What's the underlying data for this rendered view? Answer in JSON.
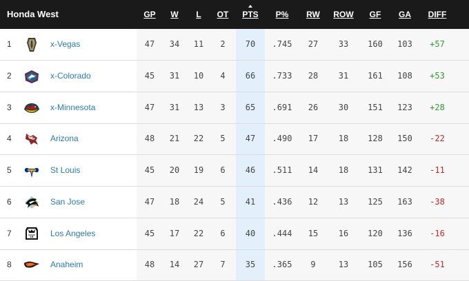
{
  "division": "Honda West",
  "columns": [
    {
      "key": "gp",
      "label": "GP"
    },
    {
      "key": "w",
      "label": "W"
    },
    {
      "key": "l",
      "label": "L"
    },
    {
      "key": "ot",
      "label": "OT"
    },
    {
      "key": "pts",
      "label": "PTS"
    },
    {
      "key": "pct",
      "label": "P%"
    },
    {
      "key": "rw",
      "label": "RW"
    },
    {
      "key": "row",
      "label": "ROW"
    },
    {
      "key": "gf",
      "label": "GF"
    },
    {
      "key": "ga",
      "label": "GA"
    },
    {
      "key": "diff",
      "label": "DIFF"
    }
  ],
  "sorted_by": "pts",
  "colors": {
    "positive": "#2e9a2e",
    "negative": "#c62828",
    "team_link": "#2a7ab8"
  },
  "teams": [
    {
      "rank": "1",
      "name": "x-Vegas",
      "logo": "vegas-golden-knights-logo",
      "gp": "47",
      "w": "34",
      "l": "11",
      "ot": "2",
      "pts": "70",
      "pct": ".745",
      "rw": "27",
      "row": "33",
      "gf": "160",
      "ga": "103",
      "diff": "+57"
    },
    {
      "rank": "2",
      "name": "x-Colorado",
      "logo": "colorado-avalanche-logo",
      "gp": "45",
      "w": "31",
      "l": "10",
      "ot": "4",
      "pts": "66",
      "pct": ".733",
      "rw": "28",
      "row": "31",
      "gf": "161",
      "ga": "108",
      "diff": "+53"
    },
    {
      "rank": "3",
      "name": "x-Minnesota",
      "logo": "minnesota-wild-logo",
      "gp": "47",
      "w": "31",
      "l": "13",
      "ot": "3",
      "pts": "65",
      "pct": ".691",
      "rw": "26",
      "row": "30",
      "gf": "151",
      "ga": "123",
      "diff": "+28"
    },
    {
      "rank": "4",
      "name": "Arizona",
      "logo": "arizona-coyotes-logo",
      "gp": "48",
      "w": "21",
      "l": "22",
      "ot": "5",
      "pts": "47",
      "pct": ".490",
      "rw": "17",
      "row": "18",
      "gf": "128",
      "ga": "150",
      "diff": "-22"
    },
    {
      "rank": "5",
      "name": "St Louis",
      "logo": "st-louis-blues-logo",
      "gp": "45",
      "w": "20",
      "l": "19",
      "ot": "6",
      "pts": "46",
      "pct": ".511",
      "rw": "14",
      "row": "18",
      "gf": "131",
      "ga": "142",
      "diff": "-11"
    },
    {
      "rank": "6",
      "name": "San Jose",
      "logo": "san-jose-sharks-logo",
      "gp": "47",
      "w": "18",
      "l": "24",
      "ot": "5",
      "pts": "41",
      "pct": ".436",
      "rw": "12",
      "row": "13",
      "gf": "125",
      "ga": "163",
      "diff": "-38"
    },
    {
      "rank": "7",
      "name": "Los Angeles",
      "logo": "los-angeles-kings-logo",
      "gp": "45",
      "w": "17",
      "l": "22",
      "ot": "6",
      "pts": "40",
      "pct": ".444",
      "rw": "15",
      "row": "16",
      "gf": "120",
      "ga": "136",
      "diff": "-16"
    },
    {
      "rank": "8",
      "name": "Anaheim",
      "logo": "anaheim-ducks-logo",
      "gp": "48",
      "w": "14",
      "l": "27",
      "ot": "7",
      "pts": "35",
      "pct": ".365",
      "rw": "9",
      "row": "13",
      "gf": "105",
      "ga": "156",
      "diff": "-51"
    }
  ]
}
